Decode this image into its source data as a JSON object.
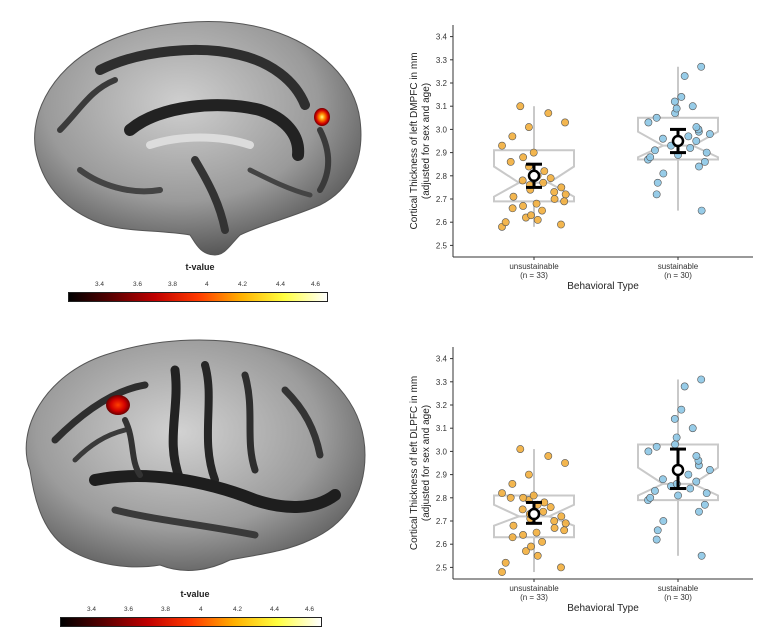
{
  "colorbars": [
    {
      "title": "t-value",
      "ticks": [
        "3.4",
        "3.6",
        "3.8",
        "4",
        "4.2",
        "4.4",
        "4.6"
      ]
    },
    {
      "title": "t-value",
      "ticks": [
        "3.4",
        "3.6",
        "3.8",
        "4",
        "4.2",
        "4.4",
        "4.6"
      ]
    }
  ],
  "colors": {
    "unsustainable": "#F2AE3C",
    "sustainable": "#8CC6E6",
    "box": "#C9C9C9",
    "cbar_stops": [
      "#000000",
      "#5a0000",
      "#c00000",
      "#ff3a00",
      "#ffb000",
      "#ffff40",
      "#ffffff"
    ]
  },
  "chart_data": [
    {
      "type": "box",
      "title": "",
      "xlabel": "Behavioral Type",
      "ylabel": "Cortical Thickness of left DMPFC in mm (adjusted for sex and age)",
      "ylabel_lines": [
        "Cortical Thickness of left DMPFC in mm",
        "(adjusted for sex and age)"
      ],
      "ylim": [
        2.45,
        3.45
      ],
      "yticks": [
        "2.5",
        "2.6",
        "2.7",
        "2.8",
        "2.9",
        "3.0",
        "3.1",
        "3.2",
        "3.3",
        "3.4"
      ],
      "categories": [
        "unsustainable",
        "sustainable"
      ],
      "category_n": [
        "(n = 33)",
        "(n = 30)"
      ],
      "series": [
        {
          "box": {
            "q1": 2.69,
            "median": 2.77,
            "q3": 2.91,
            "whisker_low": 2.58,
            "whisker_high": 3.1,
            "notch_low": 2.71,
            "notch_high": 2.84
          },
          "mean": 2.8,
          "ci": [
            2.75,
            2.85
          ],
          "points": [
            2.58,
            2.59,
            2.6,
            2.61,
            2.62,
            2.63,
            2.65,
            2.66,
            2.67,
            2.68,
            2.69,
            2.7,
            2.71,
            2.72,
            2.73,
            2.74,
            2.75,
            2.76,
            2.77,
            2.78,
            2.79,
            2.8,
            2.82,
            2.84,
            2.86,
            2.88,
            2.9,
            2.93,
            2.97,
            3.01,
            3.03,
            3.07,
            3.1
          ]
        },
        {
          "box": {
            "q1": 2.87,
            "median": 2.93,
            "q3": 3.05,
            "whisker_low": 2.65,
            "whisker_high": 3.27,
            "notch_low": 2.88,
            "notch_high": 2.99
          },
          "mean": 2.95,
          "ci": [
            2.9,
            3.0
          ],
          "points": [
            2.65,
            2.72,
            2.77,
            2.81,
            2.84,
            2.86,
            2.87,
            2.88,
            2.89,
            2.9,
            2.91,
            2.92,
            2.93,
            2.94,
            2.95,
            2.96,
            2.97,
            2.98,
            2.99,
            3.0,
            3.01,
            3.03,
            3.05,
            3.07,
            3.09,
            3.1,
            3.12,
            3.14,
            3.23,
            3.27
          ]
        }
      ]
    },
    {
      "type": "box",
      "title": "",
      "xlabel": "Behavioral Type",
      "ylabel": "Cortical Thickness of left DLPFC in mm (adjusted for sex and age)",
      "ylabel_lines": [
        "Cortical Thickness of left DLPFC in mm",
        "(adjusted for sex and age)"
      ],
      "ylim": [
        2.45,
        3.45
      ],
      "yticks": [
        "2.5",
        "2.6",
        "2.7",
        "2.8",
        "2.9",
        "3.0",
        "3.1",
        "3.2",
        "3.3",
        "3.4"
      ],
      "categories": [
        "unsustainable",
        "sustainable"
      ],
      "category_n": [
        "(n = 33)",
        "(n = 30)"
      ],
      "series": [
        {
          "box": {
            "q1": 2.63,
            "median": 2.72,
            "q3": 2.81,
            "whisker_low": 2.48,
            "whisker_high": 3.01,
            "notch_low": 2.68,
            "notch_high": 2.77
          },
          "mean": 2.73,
          "ci": [
            2.69,
            2.78
          ],
          "points": [
            2.48,
            2.5,
            2.52,
            2.55,
            2.57,
            2.59,
            2.61,
            2.63,
            2.64,
            2.65,
            2.66,
            2.67,
            2.68,
            2.69,
            2.7,
            2.71,
            2.72,
            2.73,
            2.74,
            2.75,
            2.76,
            2.77,
            2.78,
            2.79,
            2.8,
            2.8,
            2.81,
            2.82,
            2.86,
            2.9,
            2.95,
            2.98,
            3.01
          ]
        },
        {
          "box": {
            "q1": 2.79,
            "median": 2.86,
            "q3": 3.03,
            "whisker_low": 2.55,
            "whisker_high": 3.31,
            "notch_low": 2.81,
            "notch_high": 2.93
          },
          "mean": 2.92,
          "ci": [
            2.84,
            3.01
          ],
          "points": [
            2.55,
            2.62,
            2.66,
            2.7,
            2.74,
            2.77,
            2.79,
            2.8,
            2.81,
            2.82,
            2.83,
            2.84,
            2.85,
            2.86,
            2.87,
            2.88,
            2.9,
            2.92,
            2.94,
            2.96,
            2.98,
            3.0,
            3.02,
            3.03,
            3.06,
            3.1,
            3.14,
            3.18,
            3.28,
            3.31
          ]
        }
      ]
    }
  ]
}
